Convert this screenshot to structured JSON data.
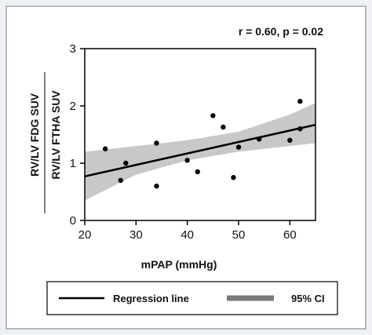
{
  "chart_data": {
    "type": "scatter",
    "annotation": "r = 0.60, p = 0.02",
    "xlabel": "mPAP (mmHg)",
    "ylabel_top": "RV/LV FDG SUV",
    "ylabel_bottom": "RV/LV FTHA SUV",
    "xlim": [
      20,
      65
    ],
    "ylim": [
      0,
      3
    ],
    "x_ticks": [
      "20",
      "30",
      "40",
      "50",
      "60"
    ],
    "y_ticks": [
      "0",
      "1",
      "2",
      "3"
    ],
    "grid": false,
    "points": [
      {
        "x": 24,
        "y": 1.25
      },
      {
        "x": 27,
        "y": 0.7
      },
      {
        "x": 28,
        "y": 1.0
      },
      {
        "x": 34,
        "y": 1.35
      },
      {
        "x": 34,
        "y": 0.6
      },
      {
        "x": 40,
        "y": 1.05
      },
      {
        "x": 42,
        "y": 0.85
      },
      {
        "x": 45,
        "y": 1.83
      },
      {
        "x": 47,
        "y": 1.63
      },
      {
        "x": 49,
        "y": 0.75
      },
      {
        "x": 50,
        "y": 1.28
      },
      {
        "x": 54,
        "y": 1.42
      },
      {
        "x": 60,
        "y": 1.4
      },
      {
        "x": 62,
        "y": 2.08
      },
      {
        "x": 62,
        "y": 1.6
      }
    ],
    "regression": {
      "x": [
        20,
        65
      ],
      "y": [
        0.77,
        1.67
      ]
    },
    "ci_band": {
      "x": [
        20,
        30,
        40,
        50,
        60,
        65
      ],
      "lower": [
        0.35,
        0.8,
        1.05,
        1.2,
        1.3,
        1.35
      ],
      "upper": [
        1.2,
        1.3,
        1.4,
        1.55,
        1.85,
        2.05
      ]
    },
    "legend": {
      "position": "bottom",
      "items": [
        {
          "label": "Regression line",
          "kind": "line",
          "color": "#000000"
        },
        {
          "label": "95% CI",
          "kind": "band",
          "color": "#7a7a7a"
        }
      ]
    },
    "colors": {
      "points": "#000000",
      "band": "#c8c8c8",
      "line": "#000000"
    }
  }
}
